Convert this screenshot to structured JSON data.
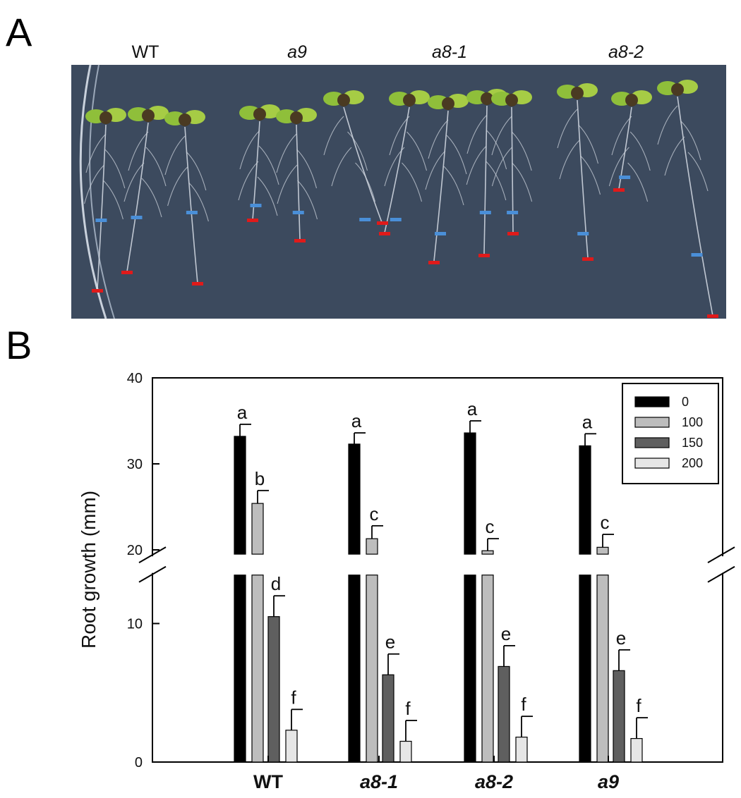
{
  "panel_labels": {
    "a": "A",
    "b": "B"
  },
  "photo": {
    "genotypes": [
      "WT",
      "a9",
      "a8-1",
      "a8-2"
    ],
    "italic": [
      false,
      true,
      true,
      true
    ],
    "plate_color": "#3c4a5e",
    "marker_start_color": "#4a8fd8",
    "marker_end_color": "#e01a1a"
  },
  "chart_data": {
    "type": "bar",
    "categories": [
      "WT",
      "a8-1",
      "a8-2",
      "a9"
    ],
    "category_italic": [
      false,
      true,
      true,
      true
    ],
    "ylabel": "Root growth (mm)",
    "ylim": [
      0,
      40
    ],
    "axis_break": {
      "lower": [
        0,
        13.5
      ],
      "upper": [
        19.5,
        40
      ]
    },
    "yticks": [
      0,
      10,
      20,
      30,
      40
    ],
    "legend_placement": "top-right",
    "series": [
      {
        "name": "0",
        "color": "#000000",
        "values": [
          33.2,
          32.3,
          33.6,
          32.1
        ],
        "errors": [
          1.4,
          1.3,
          1.4,
          1.4
        ],
        "letters": [
          "a",
          "a",
          "a",
          "a"
        ]
      },
      {
        "name": "100",
        "color": "#bdbdbd",
        "values": [
          25.4,
          21.3,
          19.9,
          20.3
        ],
        "errors": [
          1.5,
          1.5,
          1.4,
          1.5
        ],
        "letters": [
          "b",
          "c",
          "c",
          "c"
        ]
      },
      {
        "name": "150",
        "color": "#5f5f5f",
        "values": [
          10.5,
          6.3,
          6.9,
          6.6
        ],
        "errors": [
          1.5,
          1.5,
          1.5,
          1.5
        ],
        "letters": [
          "d",
          "e",
          "e",
          "e"
        ]
      },
      {
        "name": "200",
        "color": "#e6e6e6",
        "values": [
          2.3,
          1.5,
          1.8,
          1.7
        ],
        "errors": [
          1.5,
          1.5,
          1.5,
          1.5
        ],
        "letters": [
          "f",
          "f",
          "f",
          "f"
        ]
      }
    ]
  }
}
